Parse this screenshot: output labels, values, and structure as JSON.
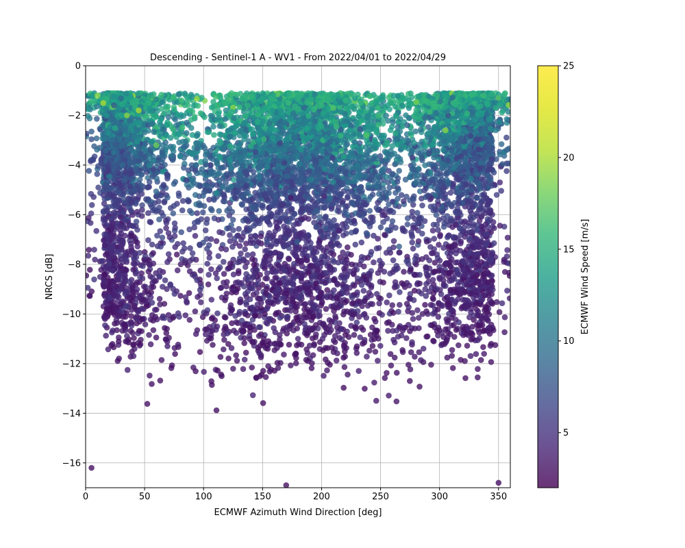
{
  "chart_data": {
    "type": "scatter",
    "title": "Descending - Sentinel-1 A - WV1 - From 2022/04/01 to 2022/04/29",
    "xlabel": "ECMWF Azimuth Wind Direction [deg]",
    "ylabel": "NRCS [dB]",
    "colorbar_label": "ECMWF Wind Speed [m/s]",
    "xlim": [
      0,
      360
    ],
    "ylim": [
      -17,
      0
    ],
    "color_range": [
      2,
      25
    ],
    "x_ticks": [
      0,
      50,
      100,
      150,
      200,
      250,
      300,
      350
    ],
    "y_ticks": [
      0,
      -2,
      -4,
      -6,
      -8,
      -10,
      -12,
      -14,
      -16
    ],
    "color_ticks": [
      5,
      10,
      15,
      20,
      25
    ],
    "grid": true,
    "colormap": "viridis",
    "marker_alpha": 0.8,
    "approx_point_count": 9000,
    "points_note": "Points are not individually read; density, NRCS spread and wind-speed color follow the pattern visible in the figure.",
    "sample_points": [
      {
        "x": 10,
        "y": -1.2,
        "c": 19
      },
      {
        "x": 15,
        "y": -1.5,
        "c": 20
      },
      {
        "x": 35,
        "y": -2.0,
        "c": 19
      },
      {
        "x": 45,
        "y": -1.8,
        "c": 20
      },
      {
        "x": 60,
        "y": -3.2,
        "c": 18
      },
      {
        "x": 172,
        "y": -1.5,
        "c": 16
      },
      {
        "x": 210,
        "y": -1.7,
        "c": 17
      },
      {
        "x": 238,
        "y": -2.8,
        "c": 17
      },
      {
        "x": 305,
        "y": -2.6,
        "c": 19
      },
      {
        "x": 337,
        "y": -1.2,
        "c": 16
      },
      {
        "x": 350,
        "y": -1.3,
        "c": 17
      },
      {
        "x": 5,
        "y": -16.2,
        "c": 3
      },
      {
        "x": 170,
        "y": -16.9,
        "c": 3
      },
      {
        "x": 350,
        "y": -16.8,
        "c": 3
      }
    ]
  }
}
